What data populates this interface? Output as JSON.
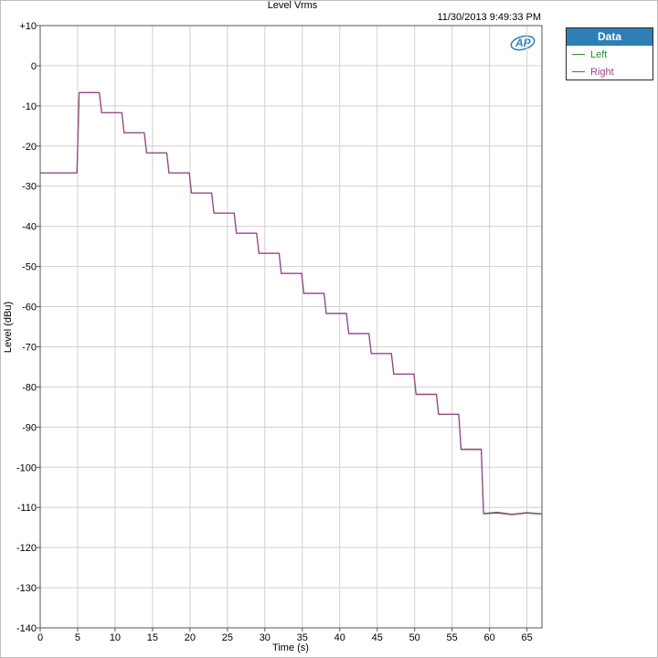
{
  "chart_data": {
    "type": "line",
    "title": "Level Vrms",
    "timestamp": "11/30/2013 9:49:33 PM",
    "xlabel": "Time (s)",
    "ylabel": "Level (dBu)",
    "xlim": [
      0,
      67
    ],
    "ylim": [
      -140,
      10
    ],
    "x_ticks": [
      0,
      5,
      10,
      15,
      20,
      25,
      30,
      35,
      40,
      45,
      50,
      55,
      60,
      65
    ],
    "y_ticks": [
      10,
      0,
      -10,
      -20,
      -30,
      -40,
      -50,
      -60,
      -70,
      -80,
      -90,
      -100,
      -110,
      -120,
      -130,
      -140
    ],
    "y_tick_labels": [
      "+10",
      "0",
      "-10",
      "-20",
      "-30",
      "-40",
      "-50",
      "-60",
      "-70",
      "-80",
      "-90",
      "-100",
      "-110",
      "-120",
      "-130",
      "-140"
    ],
    "grid": true,
    "legend": {
      "title": "Data",
      "placement": "top-right-outside"
    },
    "series": [
      {
        "name": "Left",
        "color": "#2e8b2e",
        "x": [
          0,
          4.9,
          5.2,
          7.9,
          8.2,
          10.9,
          11.2,
          13.9,
          14.2,
          16.9,
          17.2,
          19.9,
          20.2,
          22.9,
          23.2,
          25.9,
          26.2,
          28.9,
          29.2,
          31.9,
          32.2,
          34.9,
          35.2,
          37.9,
          38.2,
          40.9,
          41.2,
          43.9,
          44.2,
          46.9,
          47.2,
          49.9,
          50.2,
          52.9,
          53.2,
          55.9,
          56.2,
          58.9,
          59.2,
          61,
          63,
          65,
          67
        ],
        "y": [
          -26.7,
          -26.7,
          -6.7,
          -6.7,
          -11.7,
          -11.7,
          -16.7,
          -16.7,
          -21.7,
          -21.7,
          -26.7,
          -26.7,
          -31.7,
          -31.7,
          -36.7,
          -36.7,
          -41.7,
          -41.7,
          -46.7,
          -46.7,
          -51.7,
          -51.7,
          -56.7,
          -56.7,
          -61.7,
          -61.7,
          -66.7,
          -66.7,
          -71.7,
          -71.7,
          -76.8,
          -76.8,
          -81.8,
          -81.8,
          -86.8,
          -86.8,
          -95.5,
          -95.5,
          -111.5,
          -111.2,
          -111.7,
          -111.3,
          -111.6
        ]
      },
      {
        "name": "Right",
        "color": "#a0408f",
        "x": [
          0,
          4.9,
          5.2,
          7.9,
          8.2,
          10.9,
          11.2,
          13.9,
          14.2,
          16.9,
          17.2,
          19.9,
          20.2,
          22.9,
          23.2,
          25.9,
          26.2,
          28.9,
          29.2,
          31.9,
          32.2,
          34.9,
          35.2,
          37.9,
          38.2,
          40.9,
          41.2,
          43.9,
          44.2,
          46.9,
          47.2,
          49.9,
          50.2,
          52.9,
          53.2,
          55.9,
          56.2,
          58.9,
          59.2,
          61,
          63,
          65,
          67
        ],
        "y": [
          -26.7,
          -26.7,
          -6.7,
          -6.7,
          -11.7,
          -11.7,
          -16.7,
          -16.7,
          -21.7,
          -21.7,
          -26.7,
          -26.7,
          -31.7,
          -31.7,
          -36.7,
          -36.7,
          -41.7,
          -41.7,
          -46.7,
          -46.7,
          -51.7,
          -51.7,
          -56.7,
          -56.7,
          -61.7,
          -61.7,
          -66.7,
          -66.7,
          -71.7,
          -71.7,
          -76.8,
          -76.8,
          -81.9,
          -81.9,
          -86.8,
          -86.8,
          -95.6,
          -95.6,
          -111.6,
          -111.4,
          -111.8,
          -111.4,
          -111.7
        ]
      }
    ]
  },
  "logo_text": "AP"
}
